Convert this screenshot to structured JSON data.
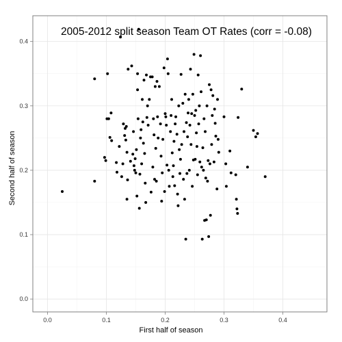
{
  "chart_data": {
    "type": "scatter",
    "title": "2005-2012 split season Team OT Rates (corr = -0.08)",
    "xlabel": "First half of season",
    "ylabel": "Second half of season",
    "xlim": [
      -0.025,
      0.475
    ],
    "ylim": [
      -0.02,
      0.44
    ],
    "x_ticks": [
      0.0,
      0.1,
      0.2,
      0.3,
      0.4
    ],
    "y_ticks": [
      0.0,
      0.1,
      0.2,
      0.3,
      0.4
    ],
    "x_tick_labels": [
      "0.0",
      "0.1",
      "0.2",
      "0.3",
      "0.4"
    ],
    "y_tick_labels": [
      "0.0",
      "0.1",
      "0.2",
      "0.3",
      "0.4"
    ],
    "grid": true,
    "point_color": "#000000",
    "gridline_color": "#e5e5e5",
    "border_color": "#7f7f7f",
    "points": [
      [
        0.025,
        0.167
      ],
      [
        0.08,
        0.342
      ],
      [
        0.08,
        0.183
      ],
      [
        0.097,
        0.22
      ],
      [
        0.099,
        0.215
      ],
      [
        0.101,
        0.28
      ],
      [
        0.102,
        0.35
      ],
      [
        0.104,
        0.28
      ],
      [
        0.106,
        0.251
      ],
      [
        0.108,
        0.289
      ],
      [
        0.109,
        0.246
      ],
      [
        0.117,
        0.212
      ],
      [
        0.118,
        0.197
      ],
      [
        0.122,
        0.237
      ],
      [
        0.124,
        0.407
      ],
      [
        0.126,
        0.19
      ],
      [
        0.128,
        0.21
      ],
      [
        0.129,
        0.272
      ],
      [
        0.131,
        0.254
      ],
      [
        0.132,
        0.265
      ],
      [
        0.133,
        0.247
      ],
      [
        0.134,
        0.268
      ],
      [
        0.135,
        0.155
      ],
      [
        0.135,
        0.228
      ],
      [
        0.136,
        0.185
      ],
      [
        0.137,
        0.357
      ],
      [
        0.141,
        0.214
      ],
      [
        0.143,
        0.362
      ],
      [
        0.145,
        0.225
      ],
      [
        0.146,
        0.26
      ],
      [
        0.147,
        0.207
      ],
      [
        0.148,
        0.2
      ],
      [
        0.149,
        0.218
      ],
      [
        0.15,
        0.196
      ],
      [
        0.151,
        0.232
      ],
      [
        0.152,
        0.16
      ],
      [
        0.153,
        0.325
      ],
      [
        0.153,
        0.35
      ],
      [
        0.154,
        0.28
      ],
      [
        0.155,
        0.419
      ],
      [
        0.156,
        0.141
      ],
      [
        0.157,
        0.194
      ],
      [
        0.158,
        0.25
      ],
      [
        0.159,
        0.263
      ],
      [
        0.16,
        0.21
      ],
      [
        0.161,
        0.31
      ],
      [
        0.162,
        0.275
      ],
      [
        0.163,
        0.242
      ],
      [
        0.164,
        0.34
      ],
      [
        0.165,
        0.226
      ],
      [
        0.166,
        0.18
      ],
      [
        0.167,
        0.15
      ],
      [
        0.168,
        0.348
      ],
      [
        0.169,
        0.282
      ],
      [
        0.17,
        0.3
      ],
      [
        0.171,
        0.27
      ],
      [
        0.173,
        0.31
      ],
      [
        0.175,
        0.345
      ],
      [
        0.176,
        0.166
      ],
      [
        0.178,
        0.345
      ],
      [
        0.179,
        0.205
      ],
      [
        0.18,
        0.28
      ],
      [
        0.181,
        0.255
      ],
      [
        0.182,
        0.186
      ],
      [
        0.183,
        0.33
      ],
      [
        0.184,
        0.234
      ],
      [
        0.185,
        0.183
      ],
      [
        0.186,
        0.338
      ],
      [
        0.187,
        0.283
      ],
      [
        0.188,
        0.25
      ],
      [
        0.19,
        0.33
      ],
      [
        0.192,
        0.272
      ],
      [
        0.193,
        0.222
      ],
      [
        0.194,
        0.152
      ],
      [
        0.195,
        0.196
      ],
      [
        0.196,
        0.248
      ],
      [
        0.198,
        0.359
      ],
      [
        0.199,
        0.167
      ],
      [
        0.2,
        0.288
      ],
      [
        0.201,
        0.283
      ],
      [
        0.202,
        0.27
      ],
      [
        0.203,
        0.208
      ],
      [
        0.204,
        0.373
      ],
      [
        0.205,
        0.35
      ],
      [
        0.206,
        0.2
      ],
      [
        0.207,
        0.175
      ],
      [
        0.209,
        0.26
      ],
      [
        0.21,
        0.285
      ],
      [
        0.211,
        0.31
      ],
      [
        0.212,
        0.227
      ],
      [
        0.213,
        0.19
      ],
      [
        0.214,
        0.207
      ],
      [
        0.215,
        0.245
      ],
      [
        0.216,
        0.176
      ],
      [
        0.217,
        0.272
      ],
      [
        0.218,
        0.283
      ],
      [
        0.22,
        0.256
      ],
      [
        0.221,
        0.163
      ],
      [
        0.222,
        0.145
      ],
      [
        0.223,
        0.3
      ],
      [
        0.224,
        0.232
      ],
      [
        0.225,
        0.195
      ],
      [
        0.226,
        0.217
      ],
      [
        0.227,
        0.349
      ],
      [
        0.228,
        0.24
      ],
      [
        0.23,
        0.304
      ],
      [
        0.231,
        0.186
      ],
      [
        0.232,
        0.26
      ],
      [
        0.233,
        0.155
      ],
      [
        0.234,
        0.318
      ],
      [
        0.235,
        0.093
      ],
      [
        0.236,
        0.274
      ],
      [
        0.237,
        0.195
      ],
      [
        0.238,
        0.252
      ],
      [
        0.239,
        0.289
      ],
      [
        0.24,
        0.31
      ],
      [
        0.241,
        0.2
      ],
      [
        0.242,
        0.27
      ],
      [
        0.243,
        0.357
      ],
      [
        0.244,
        0.24
      ],
      [
        0.245,
        0.288
      ],
      [
        0.246,
        0.175
      ],
      [
        0.247,
        0.318
      ],
      [
        0.248,
        0.216
      ],
      [
        0.249,
        0.38
      ],
      [
        0.25,
        0.285
      ],
      [
        0.251,
        0.217
      ],
      [
        0.252,
        0.293
      ],
      [
        0.253,
        0.258
      ],
      [
        0.254,
        0.237
      ],
      [
        0.255,
        0.193
      ],
      [
        0.256,
        0.348
      ],
      [
        0.257,
        0.272
      ],
      [
        0.258,
        0.3
      ],
      [
        0.259,
        0.213
      ],
      [
        0.26,
        0.378
      ],
      [
        0.261,
        0.322
      ],
      [
        0.262,
        0.205
      ],
      [
        0.263,
        0.093
      ],
      [
        0.264,
        0.235
      ],
      [
        0.265,
        0.2
      ],
      [
        0.266,
        0.28
      ],
      [
        0.267,
        0.122
      ],
      [
        0.268,
        0.26
      ],
      [
        0.269,
        0.188
      ],
      [
        0.27,
        0.123
      ],
      [
        0.271,
        0.3
      ],
      [
        0.272,
        0.183
      ],
      [
        0.273,
        0.215
      ],
      [
        0.274,
        0.097
      ],
      [
        0.275,
        0.333
      ],
      [
        0.276,
        0.21
      ],
      [
        0.277,
        0.13
      ],
      [
        0.278,
        0.325
      ],
      [
        0.279,
        0.24
      ],
      [
        0.28,
        0.285
      ],
      [
        0.281,
        0.316
      ],
      [
        0.283,
        0.213
      ],
      [
        0.284,
        0.295
      ],
      [
        0.285,
        0.273
      ],
      [
        0.286,
        0.253
      ],
      [
        0.288,
        0.171
      ],
      [
        0.289,
        0.31
      ],
      [
        0.29,
        0.248
      ],
      [
        0.291,
        0.228
      ],
      [
        0.3,
        0.283
      ],
      [
        0.303,
        0.21
      ],
      [
        0.304,
        0.175
      ],
      [
        0.31,
        0.23
      ],
      [
        0.312,
        0.196
      ],
      [
        0.32,
        0.193
      ],
      [
        0.321,
        0.155
      ],
      [
        0.322,
        0.14
      ],
      [
        0.323,
        0.133
      ],
      [
        0.324,
        0.282
      ],
      [
        0.33,
        0.326
      ],
      [
        0.34,
        0.205
      ],
      [
        0.35,
        0.262
      ],
      [
        0.354,
        0.252
      ],
      [
        0.357,
        0.257
      ],
      [
        0.37,
        0.19
      ]
    ]
  }
}
